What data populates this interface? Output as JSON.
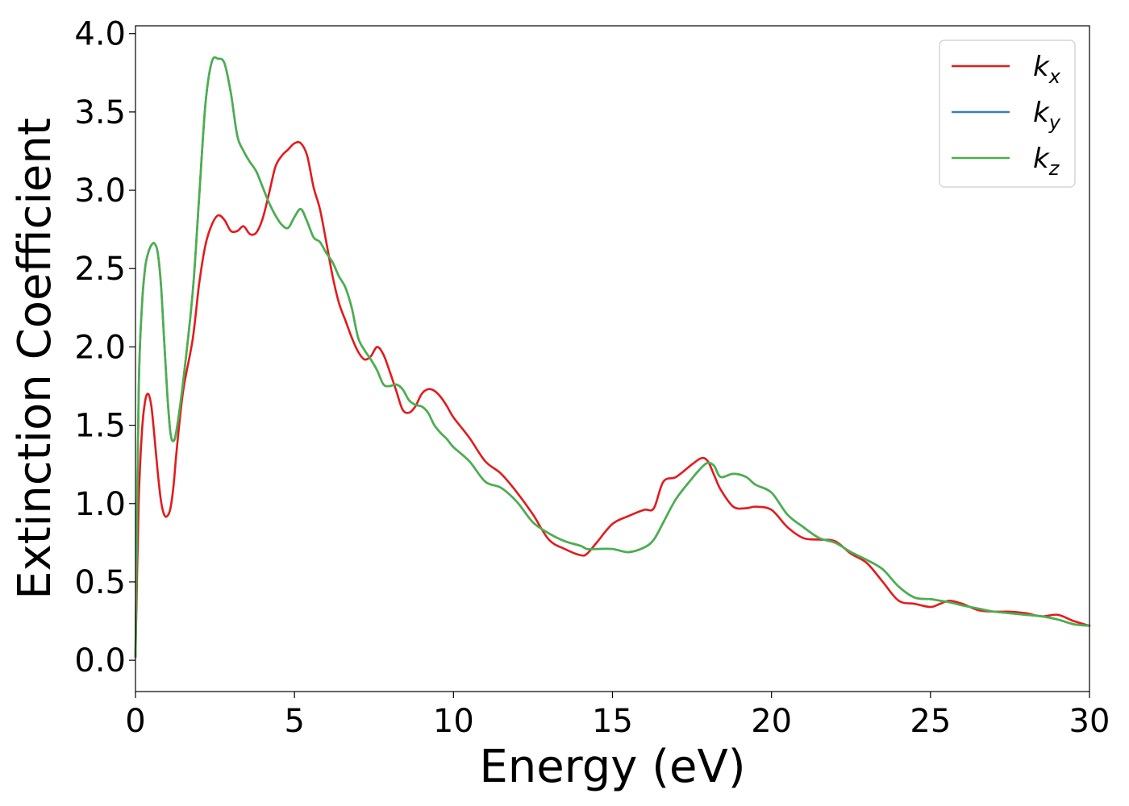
{
  "chart_data": {
    "type": "line",
    "title": "",
    "xlabel": "Energy (eV)",
    "ylabel": "Extinction Coefficient",
    "xlim": [
      0,
      30
    ],
    "ylim": [
      -0.2,
      4.05
    ],
    "xticks": [
      0,
      5,
      10,
      15,
      20,
      25,
      30
    ],
    "xtick_labels": [
      "0",
      "5",
      "10",
      "15",
      "20",
      "25",
      "30"
    ],
    "yticks": [
      0.0,
      0.5,
      1.0,
      1.5,
      2.0,
      2.5,
      3.0,
      3.5,
      4.0
    ],
    "ytick_labels": [
      "0.0",
      "0.5",
      "1.0",
      "1.5",
      "2.0",
      "2.5",
      "3.0",
      "3.5",
      "4.0"
    ],
    "grid": false,
    "legend_position": "top-right",
    "series": [
      {
        "name": "k_x",
        "label_main": "k",
        "label_sub": "x",
        "color": "#e41a1c",
        "points": [
          [
            0,
            0.02
          ],
          [
            0.1,
            1.0
          ],
          [
            0.2,
            1.45
          ],
          [
            0.3,
            1.65
          ],
          [
            0.4,
            1.7
          ],
          [
            0.5,
            1.62
          ],
          [
            0.6,
            1.42
          ],
          [
            0.7,
            1.2
          ],
          [
            0.8,
            1.02
          ],
          [
            0.9,
            0.93
          ],
          [
            1.0,
            0.92
          ],
          [
            1.1,
            0.97
          ],
          [
            1.2,
            1.12
          ],
          [
            1.3,
            1.35
          ],
          [
            1.5,
            1.72
          ],
          [
            1.8,
            2.05
          ],
          [
            2.0,
            2.4
          ],
          [
            2.2,
            2.65
          ],
          [
            2.4,
            2.78
          ],
          [
            2.6,
            2.84
          ],
          [
            2.8,
            2.81
          ],
          [
            3.0,
            2.74
          ],
          [
            3.2,
            2.74
          ],
          [
            3.4,
            2.77
          ],
          [
            3.6,
            2.72
          ],
          [
            3.8,
            2.73
          ],
          [
            4.0,
            2.82
          ],
          [
            4.2,
            2.98
          ],
          [
            4.4,
            3.15
          ],
          [
            4.6,
            3.22
          ],
          [
            4.8,
            3.26
          ],
          [
            5.0,
            3.3
          ],
          [
            5.2,
            3.3
          ],
          [
            5.4,
            3.22
          ],
          [
            5.6,
            3.02
          ],
          [
            5.8,
            2.88
          ],
          [
            6.0,
            2.67
          ],
          [
            6.2,
            2.45
          ],
          [
            6.4,
            2.28
          ],
          [
            6.6,
            2.17
          ],
          [
            6.8,
            2.06
          ],
          [
            7.0,
            1.97
          ],
          [
            7.2,
            1.92
          ],
          [
            7.4,
            1.94
          ],
          [
            7.6,
            2.0
          ],
          [
            7.8,
            1.95
          ],
          [
            8.0,
            1.84
          ],
          [
            8.2,
            1.72
          ],
          [
            8.4,
            1.6
          ],
          [
            8.6,
            1.58
          ],
          [
            8.8,
            1.62
          ],
          [
            9.0,
            1.7
          ],
          [
            9.2,
            1.73
          ],
          [
            9.4,
            1.72
          ],
          [
            9.6,
            1.68
          ],
          [
            9.8,
            1.62
          ],
          [
            10.0,
            1.55
          ],
          [
            10.5,
            1.42
          ],
          [
            11.0,
            1.27
          ],
          [
            11.5,
            1.19
          ],
          [
            12.0,
            1.07
          ],
          [
            12.5,
            0.93
          ],
          [
            13.0,
            0.77
          ],
          [
            13.5,
            0.71
          ],
          [
            14.0,
            0.67
          ],
          [
            14.2,
            0.68
          ],
          [
            14.5,
            0.75
          ],
          [
            15.0,
            0.87
          ],
          [
            15.5,
            0.92
          ],
          [
            16.0,
            0.96
          ],
          [
            16.3,
            0.97
          ],
          [
            16.6,
            1.14
          ],
          [
            17.0,
            1.17
          ],
          [
            17.5,
            1.25
          ],
          [
            17.8,
            1.29
          ],
          [
            18.0,
            1.27
          ],
          [
            18.2,
            1.18
          ],
          [
            18.4,
            1.09
          ],
          [
            18.8,
            0.98
          ],
          [
            19.2,
            0.97
          ],
          [
            19.5,
            0.98
          ],
          [
            20.0,
            0.96
          ],
          [
            20.5,
            0.85
          ],
          [
            21.0,
            0.78
          ],
          [
            21.5,
            0.77
          ],
          [
            22.0,
            0.76
          ],
          [
            22.5,
            0.68
          ],
          [
            23.0,
            0.62
          ],
          [
            23.5,
            0.5
          ],
          [
            24.0,
            0.38
          ],
          [
            24.5,
            0.36
          ],
          [
            25.0,
            0.34
          ],
          [
            25.3,
            0.36
          ],
          [
            25.6,
            0.38
          ],
          [
            26.0,
            0.36
          ],
          [
            26.5,
            0.32
          ],
          [
            27.0,
            0.31
          ],
          [
            27.5,
            0.31
          ],
          [
            28.0,
            0.3
          ],
          [
            28.5,
            0.28
          ],
          [
            29.0,
            0.29
          ],
          [
            29.5,
            0.25
          ],
          [
            30.0,
            0.22
          ]
        ]
      },
      {
        "name": "k_y",
        "label_main": "k",
        "label_sub": "y",
        "color": "#377eb8",
        "points": [
          [
            0,
            0.02
          ],
          [
            0.1,
            1.7
          ],
          [
            0.2,
            2.25
          ],
          [
            0.3,
            2.5
          ],
          [
            0.4,
            2.6
          ],
          [
            0.5,
            2.65
          ],
          [
            0.6,
            2.66
          ],
          [
            0.7,
            2.6
          ],
          [
            0.8,
            2.4
          ],
          [
            0.9,
            2.05
          ],
          [
            1.0,
            1.7
          ],
          [
            1.1,
            1.45
          ],
          [
            1.2,
            1.4
          ],
          [
            1.3,
            1.48
          ],
          [
            1.5,
            1.78
          ],
          [
            1.8,
            2.35
          ],
          [
            2.0,
            2.95
          ],
          [
            2.2,
            3.55
          ],
          [
            2.4,
            3.82
          ],
          [
            2.6,
            3.84
          ],
          [
            2.8,
            3.81
          ],
          [
            3.0,
            3.62
          ],
          [
            3.2,
            3.35
          ],
          [
            3.4,
            3.25
          ],
          [
            3.6,
            3.18
          ],
          [
            3.8,
            3.12
          ],
          [
            4.0,
            3.02
          ],
          [
            4.2,
            2.92
          ],
          [
            4.4,
            2.84
          ],
          [
            4.6,
            2.78
          ],
          [
            4.8,
            2.76
          ],
          [
            5.0,
            2.83
          ],
          [
            5.2,
            2.88
          ],
          [
            5.4,
            2.8
          ],
          [
            5.6,
            2.7
          ],
          [
            5.8,
            2.67
          ],
          [
            6.0,
            2.6
          ],
          [
            6.2,
            2.54
          ],
          [
            6.4,
            2.45
          ],
          [
            6.6,
            2.38
          ],
          [
            6.8,
            2.25
          ],
          [
            7.0,
            2.06
          ],
          [
            7.2,
            1.98
          ],
          [
            7.4,
            1.92
          ],
          [
            7.6,
            1.85
          ],
          [
            7.8,
            1.76
          ],
          [
            8.0,
            1.75
          ],
          [
            8.2,
            1.76
          ],
          [
            8.4,
            1.73
          ],
          [
            8.6,
            1.66
          ],
          [
            8.8,
            1.63
          ],
          [
            9.0,
            1.62
          ],
          [
            9.2,
            1.58
          ],
          [
            9.4,
            1.5
          ],
          [
            9.6,
            1.45
          ],
          [
            9.8,
            1.41
          ],
          [
            10.0,
            1.36
          ],
          [
            10.5,
            1.27
          ],
          [
            11.0,
            1.14
          ],
          [
            11.5,
            1.1
          ],
          [
            12.0,
            1.01
          ],
          [
            12.5,
            0.88
          ],
          [
            13.0,
            0.81
          ],
          [
            13.5,
            0.76
          ],
          [
            14.0,
            0.73
          ],
          [
            14.2,
            0.71
          ],
          [
            14.5,
            0.71
          ],
          [
            15.0,
            0.71
          ],
          [
            15.5,
            0.69
          ],
          [
            16.0,
            0.72
          ],
          [
            16.3,
            0.77
          ],
          [
            16.6,
            0.88
          ],
          [
            17.0,
            1.03
          ],
          [
            17.5,
            1.16
          ],
          [
            17.8,
            1.23
          ],
          [
            18.0,
            1.26
          ],
          [
            18.2,
            1.24
          ],
          [
            18.4,
            1.17
          ],
          [
            18.8,
            1.19
          ],
          [
            19.2,
            1.17
          ],
          [
            19.5,
            1.12
          ],
          [
            20.0,
            1.07
          ],
          [
            20.5,
            0.93
          ],
          [
            21.0,
            0.85
          ],
          [
            21.5,
            0.78
          ],
          [
            22.0,
            0.75
          ],
          [
            22.5,
            0.69
          ],
          [
            23.0,
            0.64
          ],
          [
            23.5,
            0.58
          ],
          [
            24.0,
            0.47
          ],
          [
            24.5,
            0.4
          ],
          [
            25.0,
            0.39
          ],
          [
            25.3,
            0.38
          ],
          [
            25.6,
            0.37
          ],
          [
            26.0,
            0.35
          ],
          [
            26.5,
            0.33
          ],
          [
            27.0,
            0.31
          ],
          [
            27.5,
            0.3
          ],
          [
            28.0,
            0.29
          ],
          [
            28.5,
            0.28
          ],
          [
            29.0,
            0.26
          ],
          [
            29.5,
            0.23
          ],
          [
            30.0,
            0.22
          ]
        ]
      },
      {
        "name": "k_z",
        "label_main": "k",
        "label_sub": "z",
        "color": "#4daf4a",
        "points": [
          [
            0,
            0.02
          ],
          [
            0.1,
            1.7
          ],
          [
            0.2,
            2.25
          ],
          [
            0.3,
            2.5
          ],
          [
            0.4,
            2.6
          ],
          [
            0.5,
            2.65
          ],
          [
            0.6,
            2.66
          ],
          [
            0.7,
            2.6
          ],
          [
            0.8,
            2.4
          ],
          [
            0.9,
            2.05
          ],
          [
            1.0,
            1.7
          ],
          [
            1.1,
            1.45
          ],
          [
            1.2,
            1.4
          ],
          [
            1.3,
            1.48
          ],
          [
            1.5,
            1.78
          ],
          [
            1.8,
            2.35
          ],
          [
            2.0,
            2.95
          ],
          [
            2.2,
            3.55
          ],
          [
            2.4,
            3.82
          ],
          [
            2.6,
            3.84
          ],
          [
            2.8,
            3.81
          ],
          [
            3.0,
            3.62
          ],
          [
            3.2,
            3.35
          ],
          [
            3.4,
            3.25
          ],
          [
            3.6,
            3.18
          ],
          [
            3.8,
            3.12
          ],
          [
            4.0,
            3.02
          ],
          [
            4.2,
            2.92
          ],
          [
            4.4,
            2.84
          ],
          [
            4.6,
            2.78
          ],
          [
            4.8,
            2.76
          ],
          [
            5.0,
            2.83
          ],
          [
            5.2,
            2.88
          ],
          [
            5.4,
            2.8
          ],
          [
            5.6,
            2.7
          ],
          [
            5.8,
            2.67
          ],
          [
            6.0,
            2.6
          ],
          [
            6.2,
            2.54
          ],
          [
            6.4,
            2.45
          ],
          [
            6.6,
            2.38
          ],
          [
            6.8,
            2.25
          ],
          [
            7.0,
            2.06
          ],
          [
            7.2,
            1.98
          ],
          [
            7.4,
            1.92
          ],
          [
            7.6,
            1.85
          ],
          [
            7.8,
            1.76
          ],
          [
            8.0,
            1.75
          ],
          [
            8.2,
            1.76
          ],
          [
            8.4,
            1.73
          ],
          [
            8.6,
            1.66
          ],
          [
            8.8,
            1.63
          ],
          [
            9.0,
            1.62
          ],
          [
            9.2,
            1.58
          ],
          [
            9.4,
            1.5
          ],
          [
            9.6,
            1.45
          ],
          [
            9.8,
            1.41
          ],
          [
            10.0,
            1.36
          ],
          [
            10.5,
            1.27
          ],
          [
            11.0,
            1.14
          ],
          [
            11.5,
            1.1
          ],
          [
            12.0,
            1.01
          ],
          [
            12.5,
            0.88
          ],
          [
            13.0,
            0.81
          ],
          [
            13.5,
            0.76
          ],
          [
            14.0,
            0.73
          ],
          [
            14.2,
            0.71
          ],
          [
            14.5,
            0.71
          ],
          [
            15.0,
            0.71
          ],
          [
            15.5,
            0.69
          ],
          [
            16.0,
            0.72
          ],
          [
            16.3,
            0.77
          ],
          [
            16.6,
            0.88
          ],
          [
            17.0,
            1.03
          ],
          [
            17.5,
            1.16
          ],
          [
            17.8,
            1.23
          ],
          [
            18.0,
            1.26
          ],
          [
            18.2,
            1.24
          ],
          [
            18.4,
            1.17
          ],
          [
            18.8,
            1.19
          ],
          [
            19.2,
            1.17
          ],
          [
            19.5,
            1.12
          ],
          [
            20.0,
            1.07
          ],
          [
            20.5,
            0.93
          ],
          [
            21.0,
            0.85
          ],
          [
            21.5,
            0.78
          ],
          [
            22.0,
            0.75
          ],
          [
            22.5,
            0.69
          ],
          [
            23.0,
            0.64
          ],
          [
            23.5,
            0.58
          ],
          [
            24.0,
            0.47
          ],
          [
            24.5,
            0.4
          ],
          [
            25.0,
            0.39
          ],
          [
            25.3,
            0.38
          ],
          [
            25.6,
            0.37
          ],
          [
            26.0,
            0.35
          ],
          [
            26.5,
            0.33
          ],
          [
            27.0,
            0.31
          ],
          [
            27.5,
            0.3
          ],
          [
            28.0,
            0.29
          ],
          [
            28.5,
            0.28
          ],
          [
            29.0,
            0.26
          ],
          [
            29.5,
            0.23
          ],
          [
            30.0,
            0.22
          ]
        ]
      }
    ]
  }
}
